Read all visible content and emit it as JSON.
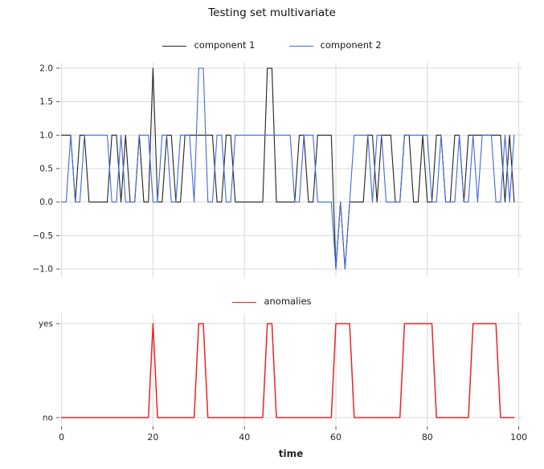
{
  "title": "Testing set multivariate",
  "colors": {
    "component1": "#222222",
    "component2": "#4169e1",
    "anomalies": "#ee2222",
    "grid": "#d9d9d9",
    "tick_mark": "#444444",
    "tick_text": "#262626"
  },
  "chart_data": [
    {
      "type": "line",
      "title": "Testing set multivariate",
      "legend_position": "upper center",
      "grid": true,
      "legend": [
        {
          "label": "component 1",
          "color": "#222222"
        },
        {
          "label": "component 2",
          "color": "#4169e1"
        }
      ],
      "x_start": 0,
      "x_step": 1,
      "n_points": 100,
      "xlim": [
        -0.46,
        100.77
      ],
      "ylim": [
        -1.12,
        2.083
      ],
      "xticks": [
        {
          "v": 0,
          "label": "0"
        },
        {
          "v": 20,
          "label": "20"
        },
        {
          "v": 40,
          "label": "40"
        },
        {
          "v": 60,
          "label": "60"
        },
        {
          "v": 80,
          "label": "80"
        },
        {
          "v": 100,
          "label": "100"
        }
      ],
      "xtick_labels_visible": false,
      "xlabel": "",
      "yticks": [
        {
          "v": 2,
          "label": "2.0"
        },
        {
          "v": 1.5,
          "label": "1.5"
        },
        {
          "v": 1,
          "label": "1.0"
        },
        {
          "v": 0.5,
          "label": "0.5"
        },
        {
          "v": 0,
          "label": "0.0"
        },
        {
          "v": -0.5,
          "label": "−0.5"
        },
        {
          "v": -1,
          "label": "−1.0"
        }
      ],
      "series": [
        {
          "name": "component 1",
          "color": "#222222",
          "values": [
            1,
            1,
            1,
            0,
            1,
            1,
            0,
            0,
            0,
            0,
            0,
            1,
            1,
            0,
            1,
            0,
            0,
            1,
            0,
            0,
            2,
            0,
            0,
            1,
            1,
            0,
            0,
            1,
            1,
            1,
            1,
            1,
            1,
            1,
            0,
            0,
            1,
            1,
            0,
            0,
            0,
            0,
            0,
            0,
            0,
            2,
            2,
            0,
            0,
            0,
            0,
            0,
            1,
            1,
            0,
            0,
            1,
            1,
            1,
            1,
            -1,
            0,
            -1,
            0,
            0,
            0,
            0,
            1,
            1,
            0,
            1,
            1,
            1,
            0,
            0,
            1,
            1,
            0,
            0,
            1,
            0,
            0,
            1,
            1,
            0,
            0,
            1,
            1,
            0,
            1,
            1,
            1,
            1,
            1,
            1,
            1,
            1,
            0,
            1,
            0
          ]
        },
        {
          "name": "component 2",
          "color": "#4169e1",
          "values": [
            0,
            0,
            1,
            0,
            0,
            1,
            1,
            1,
            1,
            1,
            1,
            0,
            0,
            1,
            0,
            0,
            0,
            1,
            1,
            1,
            0,
            0,
            1,
            1,
            0,
            0,
            1,
            1,
            1,
            0,
            2,
            2,
            0,
            0,
            1,
            1,
            0,
            0,
            1,
            1,
            1,
            1,
            1,
            1,
            1,
            1,
            1,
            1,
            1,
            1,
            1,
            0,
            0,
            1,
            1,
            1,
            0,
            0,
            0,
            0,
            -1,
            0,
            -1,
            0,
            1,
            1,
            1,
            1,
            0,
            1,
            1,
            0,
            0,
            0,
            0,
            1,
            1,
            1,
            1,
            1,
            1,
            0,
            0,
            1,
            0,
            0,
            0,
            1,
            0,
            0,
            1,
            0,
            1,
            1,
            1,
            0,
            0,
            1,
            0,
            1
          ]
        }
      ]
    },
    {
      "type": "line",
      "title": "",
      "legend_position": "upper center",
      "grid": true,
      "legend": [
        {
          "label": "anomalies",
          "color": "#ee2222"
        }
      ],
      "x_start": 0,
      "x_step": 1,
      "n_points": 100,
      "xlim": [
        -0.46,
        100.77
      ],
      "ylim": [
        -0.094,
        1.111
      ],
      "xticks": [
        {
          "v": 0,
          "label": "0"
        },
        {
          "v": 20,
          "label": "20"
        },
        {
          "v": 40,
          "label": "40"
        },
        {
          "v": 60,
          "label": "60"
        },
        {
          "v": 80,
          "label": "80"
        },
        {
          "v": 100,
          "label": "100"
        }
      ],
      "xtick_labels_visible": true,
      "xlabel": "time",
      "yticks": [
        {
          "v": 1,
          "label": "yes"
        },
        {
          "v": 0,
          "label": "no"
        }
      ],
      "series": [
        {
          "name": "anomalies",
          "color": "#ee2222",
          "value_map": {
            "0": "no",
            "1": "yes"
          },
          "values": [
            0,
            0,
            0,
            0,
            0,
            0,
            0,
            0,
            0,
            0,
            0,
            0,
            0,
            0,
            0,
            0,
            0,
            0,
            0,
            0,
            1,
            0,
            0,
            0,
            0,
            0,
            0,
            0,
            0,
            0,
            1,
            1,
            0,
            0,
            0,
            0,
            0,
            0,
            0,
            0,
            0,
            0,
            0,
            0,
            0,
            1,
            1,
            0,
            0,
            0,
            0,
            0,
            0,
            0,
            0,
            0,
            0,
            0,
            0,
            0,
            1,
            1,
            1,
            1,
            0,
            0,
            0,
            0,
            0,
            0,
            0,
            0,
            0,
            0,
            0,
            1,
            1,
            1,
            1,
            1,
            1,
            1,
            0,
            0,
            0,
            0,
            0,
            0,
            0,
            0,
            1,
            1,
            1,
            1,
            1,
            1,
            0,
            0,
            0,
            0
          ]
        }
      ]
    }
  ]
}
